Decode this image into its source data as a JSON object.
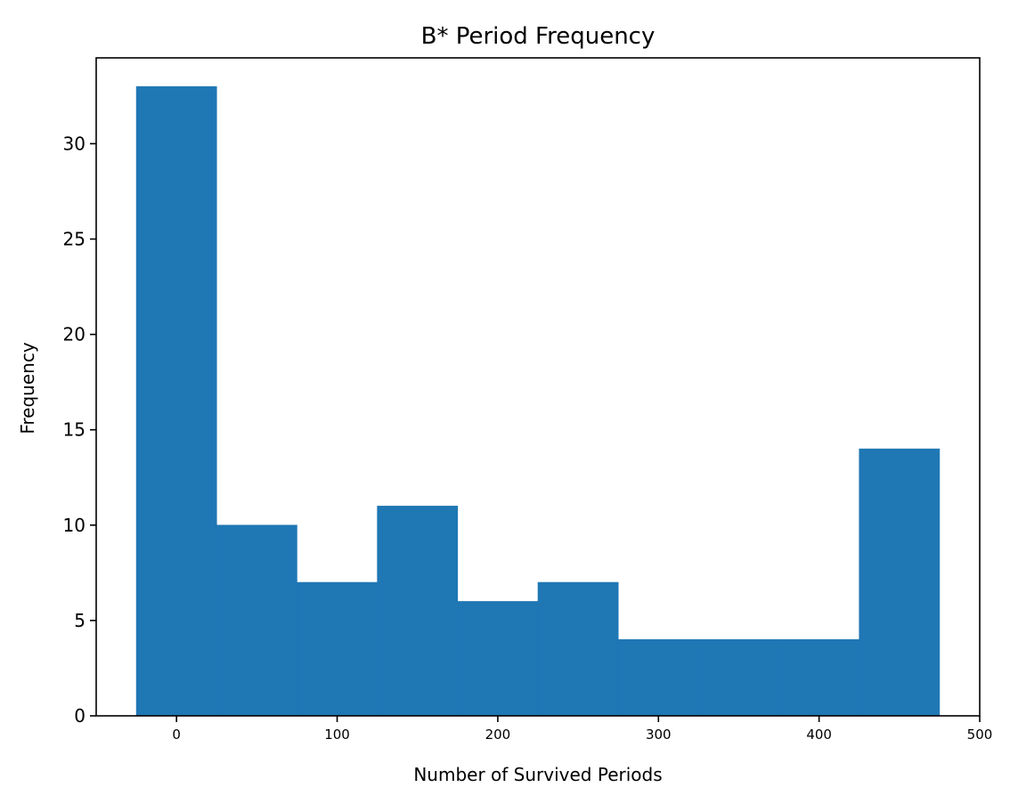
{
  "chart_data": {
    "type": "bar",
    "subtype": "histogram",
    "title": "B* Period Frequency",
    "xlabel": "Number of Survived Periods",
    "ylabel": "Frequency",
    "bin_edges": [
      -25,
      25,
      75,
      125,
      175,
      225,
      275,
      325,
      375,
      425,
      475
    ],
    "values": [
      33,
      10,
      7,
      11,
      6,
      7,
      4,
      4,
      4,
      14
    ],
    "xlim": [
      -50,
      500
    ],
    "ylim": [
      0,
      34.5
    ],
    "x_ticks": [
      0,
      100,
      200,
      300,
      400,
      500
    ],
    "y_ticks": [
      0,
      5,
      10,
      15,
      20,
      25,
      30
    ],
    "grid": false,
    "bar_color": "#1f77b4"
  }
}
